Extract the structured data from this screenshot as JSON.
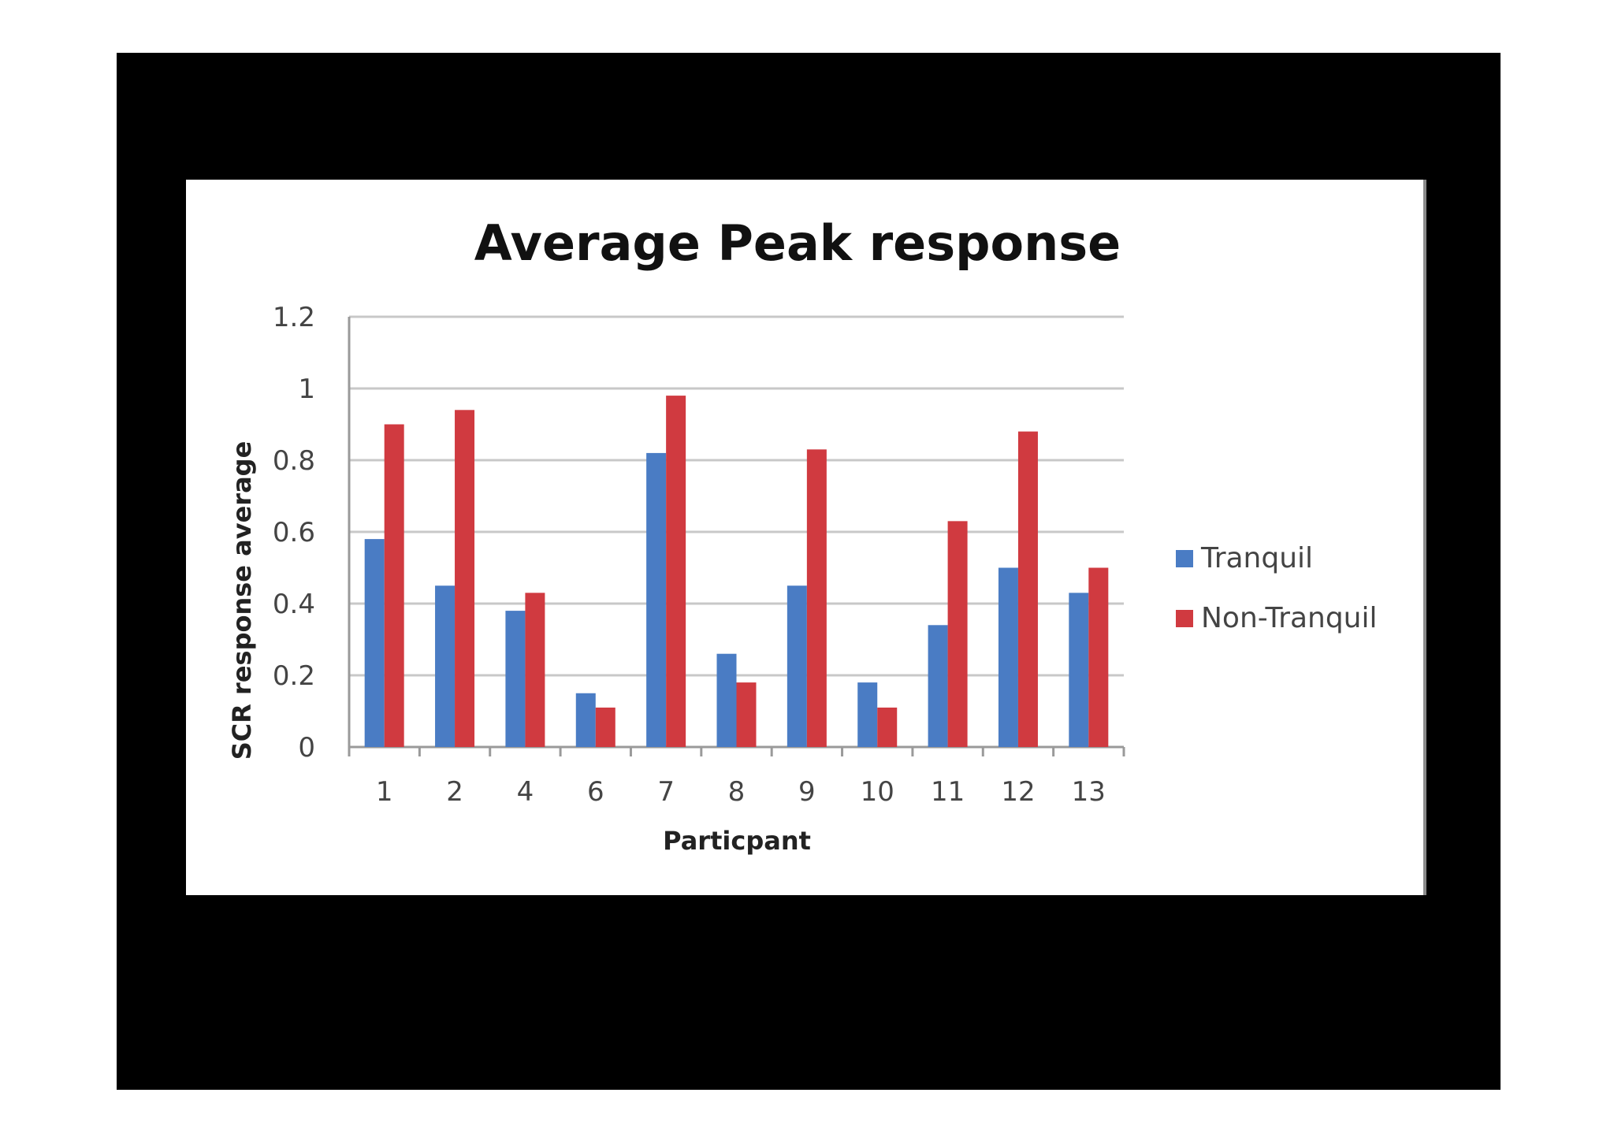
{
  "chart_data": {
    "type": "bar",
    "title": "Average Peak response",
    "xlabel": "Particpant",
    "ylabel": "SCR response average",
    "categories": [
      "1",
      "2",
      "4",
      "6",
      "7",
      "8",
      "9",
      "10",
      "11",
      "12",
      "13"
    ],
    "series": [
      {
        "name": "Tranquil",
        "color": "#4a7cc4",
        "values": [
          0.58,
          0.45,
          0.38,
          0.15,
          0.82,
          0.26,
          0.45,
          0.18,
          0.34,
          0.5,
          0.43
        ]
      },
      {
        "name": "Non-Tranquil",
        "color": "#d03a40",
        "values": [
          0.9,
          0.94,
          0.43,
          0.11,
          0.98,
          0.18,
          0.83,
          0.11,
          0.63,
          0.88,
          0.5
        ]
      }
    ],
    "ylim": [
      0,
      1.2
    ],
    "yticks": [
      "0",
      "0.2",
      "0.4",
      "0.6",
      "0.8",
      "1",
      "1.2"
    ],
    "grid": true,
    "legend_position": "right"
  }
}
